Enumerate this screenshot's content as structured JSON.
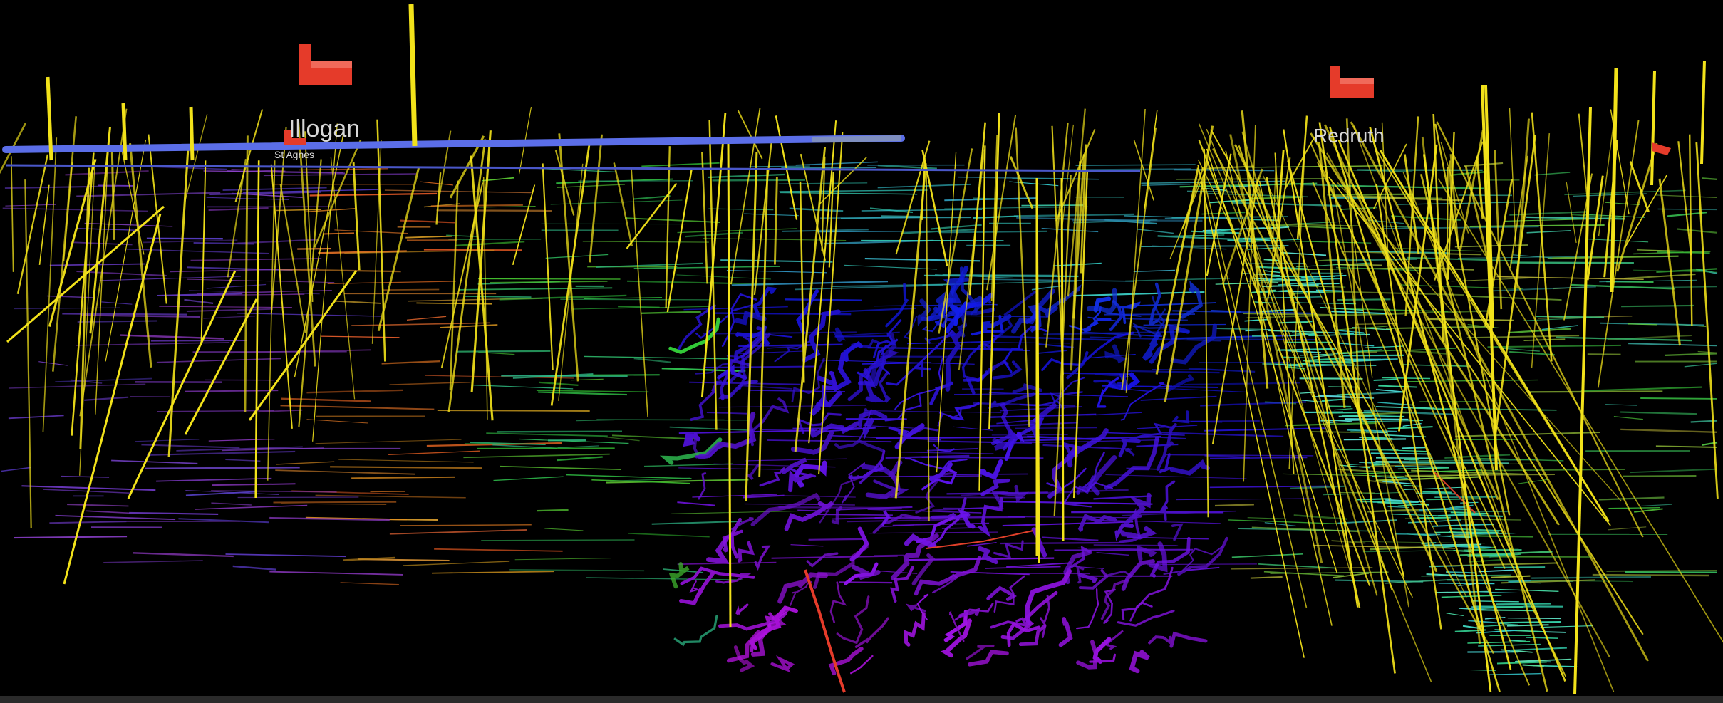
{
  "scene": {
    "background_color": "#000000",
    "labels": {
      "town_left": "Illogan",
      "town_left_sub": "St Agnes",
      "town_right": "Redruth"
    },
    "colors": {
      "shaft": "#f2e21a",
      "surface_line": "#5b6ee8",
      "marker": "#e53b2a",
      "level_deep": "#2b2bd9",
      "level_mid": "#35c7c0",
      "level_shallow": "#b8d84a",
      "level_purple": "#8a3ad9"
    }
  }
}
